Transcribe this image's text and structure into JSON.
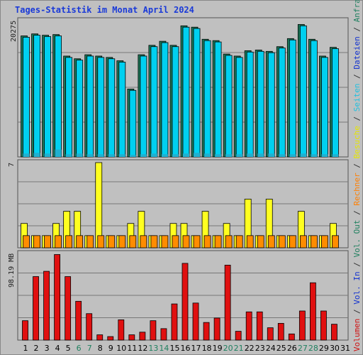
{
  "title": "Tages-Statistik im Monat April 2024",
  "y_labels": {
    "top": "20275",
    "mid": "7",
    "bottom": "98.19 MB"
  },
  "legend": [
    {
      "text": "Volumen",
      "color": "#d01010"
    },
    {
      "text": " / ",
      "color": "#333333"
    },
    {
      "text": "Vol. In",
      "color": "#1030d0"
    },
    {
      "text": " / ",
      "color": "#333333"
    },
    {
      "text": "Vol. Out",
      "color": "#208060"
    },
    {
      "text": " / ",
      "color": "#333333"
    },
    {
      "text": "Rechner",
      "color": "#ff7f00"
    },
    {
      "text": " / ",
      "color": "#333333"
    },
    {
      "text": "Besuche",
      "color": "#e6e600"
    },
    {
      "text": " / ",
      "color": "#333333"
    },
    {
      "text": "Seiten",
      "color": "#20c0e0"
    },
    {
      "text": " / ",
      "color": "#333333"
    },
    {
      "text": "Dateien",
      "color": "#1030d0"
    },
    {
      "text": " / ",
      "color": "#333333"
    },
    {
      "text": "Anfragen",
      "color": "#208060"
    }
  ],
  "colors": {
    "anfragen": "#1b7a5b",
    "dateien": "#00d0f0",
    "seiten": "#20b0d0",
    "besuche": "#ffff20",
    "rechner": "#ff8c00",
    "volumen": "#e01010",
    "weekend_label": "#208060",
    "weekday_label": "#000000"
  },
  "chart_data": [
    {
      "type": "bar",
      "name": "hits-files",
      "categories": [
        "1",
        "2",
        "3",
        "4",
        "5",
        "6",
        "7",
        "8",
        "9",
        "10",
        "11",
        "12",
        "13",
        "14",
        "15",
        "16",
        "17",
        "18",
        "19",
        "20",
        "21",
        "22",
        "23",
        "24",
        "25",
        "26",
        "27",
        "28",
        "29",
        "30",
        "31"
      ],
      "ylim": [
        0,
        20275
      ],
      "series": [
        {
          "name": "Anfragen",
          "values": [
            18000,
            18300,
            18100,
            18200,
            15000,
            14600,
            15200,
            15000,
            14800,
            14300,
            10100,
            15200,
            16600,
            17200,
            16600,
            19500,
            19300,
            17500,
            17300,
            15300,
            15000,
            15800,
            15900,
            15700,
            16400,
            17600,
            19700,
            17500,
            15000,
            16300,
            0
          ]
        },
        {
          "name": "Dateien",
          "values": [
            17800,
            18100,
            17900,
            18000,
            14800,
            14400,
            15000,
            14800,
            14600,
            14100,
            9900,
            15000,
            16400,
            17000,
            16400,
            19300,
            19100,
            17300,
            17100,
            15100,
            14800,
            15600,
            15700,
            15500,
            16200,
            17400,
            19500,
            17300,
            14800,
            16100,
            0
          ]
        },
        {
          "name": "Seiten",
          "values": [
            500,
            600,
            500,
            1100,
            400,
            500,
            400,
            400,
            400,
            400,
            300,
            400,
            500,
            400,
            400,
            500,
            600,
            500,
            400,
            400,
            400,
            500,
            500,
            500,
            400,
            400,
            500,
            400,
            400,
            400,
            0
          ]
        }
      ]
    },
    {
      "type": "bar",
      "name": "visits-hosts",
      "categories": [
        "1",
        "2",
        "3",
        "4",
        "5",
        "6",
        "7",
        "8",
        "9",
        "10",
        "11",
        "12",
        "13",
        "14",
        "15",
        "16",
        "17",
        "18",
        "19",
        "20",
        "21",
        "22",
        "23",
        "24",
        "25",
        "26",
        "27",
        "28",
        "29",
        "30",
        "31"
      ],
      "ylim": [
        0,
        7
      ],
      "series": [
        {
          "name": "Besuche",
          "values": [
            2,
            1,
            1,
            2,
            3,
            3,
            1,
            7,
            1,
            1,
            2,
            3,
            1,
            1,
            2,
            2,
            1,
            3,
            1,
            2,
            1,
            4,
            1,
            4,
            1,
            1,
            3,
            1,
            1,
            2,
            0
          ]
        },
        {
          "name": "Rechner",
          "values": [
            1,
            1,
            1,
            1,
            1,
            1,
            1,
            1,
            1,
            1,
            1,
            1,
            1,
            1,
            1,
            1,
            1,
            1,
            1,
            1,
            1,
            1,
            1,
            1,
            1,
            1,
            1,
            1,
            1,
            1,
            0
          ]
        }
      ]
    },
    {
      "type": "bar",
      "name": "volume",
      "categories": [
        "1",
        "2",
        "3",
        "4",
        "5",
        "6",
        "7",
        "8",
        "9",
        "10",
        "11",
        "12",
        "13",
        "14",
        "15",
        "16",
        "17",
        "18",
        "19",
        "20",
        "21",
        "22",
        "23",
        "24",
        "25",
        "26",
        "27",
        "28",
        "29",
        "30",
        "31"
      ],
      "ylim": [
        0,
        98.19
      ],
      "ylabel": "98.19 MB",
      "series": [
        {
          "name": "Volumen",
          "values": [
            22,
            72,
            78,
            97,
            72,
            44,
            30,
            6,
            4,
            23,
            6,
            9,
            22,
            13,
            41,
            87,
            42,
            20,
            25,
            85,
            10,
            32,
            32,
            14,
            19,
            7,
            33,
            65,
            33,
            18,
            0
          ]
        }
      ]
    }
  ],
  "x_labels": [
    "1",
    "2",
    "3",
    "4",
    "5",
    "6",
    "7",
    "8",
    "9",
    "10",
    "11",
    "12",
    "13",
    "14",
    "15",
    "16",
    "17",
    "18",
    "19",
    "20",
    "21",
    "22",
    "23",
    "24",
    "25",
    "26",
    "27",
    "28",
    "29",
    "30",
    "31"
  ],
  "weekend_days": [
    6,
    7,
    13,
    14,
    20,
    21,
    27,
    28
  ]
}
